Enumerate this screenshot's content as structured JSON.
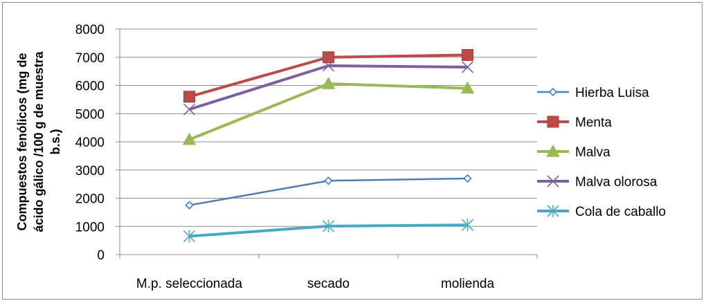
{
  "chart_data": {
    "type": "line",
    "title": "",
    "xlabel": "",
    "ylabel_lines": [
      "Compuestos fenólicos (mg de",
      "ácido gálico  /100 g de muestra",
      "b.s.)"
    ],
    "categories": [
      "M.p. seleccionada",
      "secado",
      "molienda"
    ],
    "ylim": [
      0,
      8000
    ],
    "yticks": [
      0,
      1000,
      2000,
      3000,
      4000,
      5000,
      6000,
      7000,
      8000
    ],
    "grid": "horizontal",
    "legend_position": "right",
    "series": [
      {
        "name": "Hierba Luisa",
        "values": [
          1750,
          2620,
          2700
        ],
        "color": "#4a7ebb",
        "marker": "diamond-open"
      },
      {
        "name": "Menta",
        "values": [
          5600,
          7000,
          7080
        ],
        "color": "#be4b48",
        "marker": "square"
      },
      {
        "name": "Malva",
        "values": [
          4080,
          6060,
          5900
        ],
        "color": "#98b954",
        "marker": "triangle"
      },
      {
        "name": "Malva olorosa",
        "values": [
          5150,
          6700,
          6650
        ],
        "color": "#7d60a0",
        "marker": "x"
      },
      {
        "name": "Cola de caballo",
        "values": [
          650,
          1010,
          1050
        ],
        "color": "#46aac5",
        "marker": "star"
      }
    ]
  }
}
